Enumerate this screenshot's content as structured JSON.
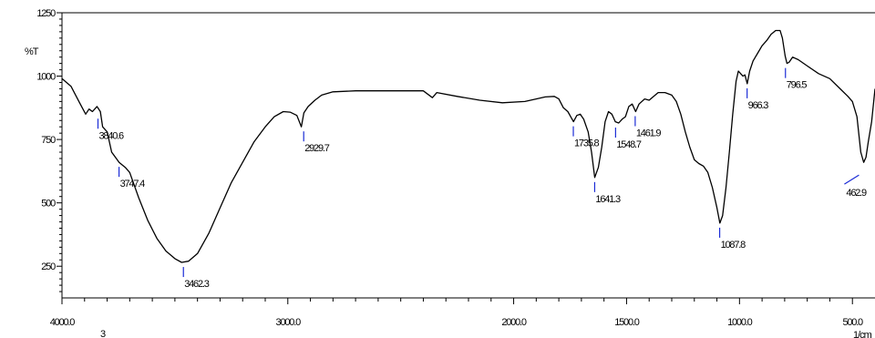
{
  "chart_data": {
    "type": "line",
    "title": "",
    "xlabel": "1/cm",
    "ylabel": "%T",
    "x_reversed": true,
    "xlim": [
      4000,
      400
    ],
    "ylim": [
      125,
      1250
    ],
    "x_ticks": [
      {
        "value": 4000,
        "label": "4000.0"
      },
      {
        "value": 3000,
        "label": "3000.0"
      },
      {
        "value": 2000,
        "label": "2000.0"
      },
      {
        "value": 1500,
        "label": "1500.0"
      },
      {
        "value": 1000,
        "label": "1000.0"
      },
      {
        "value": 500,
        "label": "500.0"
      }
    ],
    "y_ticks": [
      {
        "value": 1250,
        "label": "1250"
      },
      {
        "value": 1000,
        "label": "1000"
      },
      {
        "value": 750,
        "label": "750"
      },
      {
        "value": 500,
        "label": "500"
      },
      {
        "value": 250,
        "label": "250"
      }
    ],
    "below_axis_note": "3",
    "grid": false,
    "colors": {
      "line": "#000000",
      "marker": "#1a2bd6"
    },
    "series": [
      {
        "points": [
          [
            4000,
            990
          ],
          [
            3960,
            960
          ],
          [
            3925,
            900
          ],
          [
            3895,
            850
          ],
          [
            3880,
            870
          ],
          [
            3865,
            860
          ],
          [
            3845,
            880
          ],
          [
            3830,
            860
          ],
          [
            3820,
            800
          ],
          [
            3800,
            780
          ],
          [
            3780,
            700
          ],
          [
            3747,
            660
          ],
          [
            3720,
            640
          ],
          [
            3700,
            620
          ],
          [
            3660,
            520
          ],
          [
            3620,
            430
          ],
          [
            3580,
            360
          ],
          [
            3540,
            310
          ],
          [
            3500,
            280
          ],
          [
            3470,
            265
          ],
          [
            3440,
            270
          ],
          [
            3400,
            300
          ],
          [
            3350,
            380
          ],
          [
            3300,
            480
          ],
          [
            3250,
            580
          ],
          [
            3200,
            660
          ],
          [
            3150,
            740
          ],
          [
            3100,
            800
          ],
          [
            3060,
            840
          ],
          [
            3020,
            860
          ],
          [
            2990,
            858
          ],
          [
            2960,
            845
          ],
          [
            2940,
            800
          ],
          [
            2929,
            855
          ],
          [
            2910,
            880
          ],
          [
            2880,
            905
          ],
          [
            2850,
            925
          ],
          [
            2800,
            938
          ],
          [
            2700,
            942
          ],
          [
            2600,
            942
          ],
          [
            2400,
            942
          ],
          [
            2360,
            915
          ],
          [
            2340,
            935
          ],
          [
            2250,
            920
          ],
          [
            2150,
            905
          ],
          [
            2050,
            895
          ],
          [
            1950,
            900
          ],
          [
            1900,
            910
          ],
          [
            1860,
            918
          ],
          [
            1820,
            920
          ],
          [
            1800,
            910
          ],
          [
            1780,
            875
          ],
          [
            1760,
            860
          ],
          [
            1735,
            820
          ],
          [
            1720,
            845
          ],
          [
            1705,
            850
          ],
          [
            1690,
            830
          ],
          [
            1670,
            780
          ],
          [
            1655,
            700
          ],
          [
            1641,
            600
          ],
          [
            1625,
            640
          ],
          [
            1610,
            720
          ],
          [
            1595,
            820
          ],
          [
            1580,
            860
          ],
          [
            1565,
            850
          ],
          [
            1550,
            820
          ],
          [
            1535,
            815
          ],
          [
            1520,
            830
          ],
          [
            1505,
            840
          ],
          [
            1490,
            880
          ],
          [
            1475,
            890
          ],
          [
            1460,
            860
          ],
          [
            1445,
            890
          ],
          [
            1420,
            910
          ],
          [
            1400,
            905
          ],
          [
            1380,
            920
          ],
          [
            1360,
            935
          ],
          [
            1330,
            935
          ],
          [
            1300,
            925
          ],
          [
            1280,
            900
          ],
          [
            1260,
            850
          ],
          [
            1240,
            780
          ],
          [
            1220,
            720
          ],
          [
            1200,
            670
          ],
          [
            1180,
            655
          ],
          [
            1160,
            645
          ],
          [
            1140,
            620
          ],
          [
            1120,
            560
          ],
          [
            1100,
            480
          ],
          [
            1087,
            420
          ],
          [
            1075,
            450
          ],
          [
            1060,
            560
          ],
          [
            1045,
            700
          ],
          [
            1030,
            850
          ],
          [
            1015,
            980
          ],
          [
            1005,
            1020
          ],
          [
            995,
            1010
          ],
          [
            985,
            1000
          ],
          [
            976,
            1005
          ],
          [
            966,
            970
          ],
          [
            955,
            1020
          ],
          [
            940,
            1060
          ],
          [
            920,
            1090
          ],
          [
            900,
            1120
          ],
          [
            880,
            1140
          ],
          [
            860,
            1165
          ],
          [
            840,
            1180
          ],
          [
            820,
            1180
          ],
          [
            810,
            1150
          ],
          [
            798,
            1080
          ],
          [
            790,
            1050
          ],
          [
            780,
            1055
          ],
          [
            765,
            1075
          ],
          [
            740,
            1065
          ],
          [
            700,
            1040
          ],
          [
            650,
            1010
          ],
          [
            600,
            990
          ],
          [
            560,
            955
          ],
          [
            520,
            920
          ],
          [
            500,
            900
          ],
          [
            480,
            840
          ],
          [
            463,
            700
          ],
          [
            450,
            660
          ],
          [
            440,
            680
          ],
          [
            430,
            740
          ],
          [
            415,
            820
          ],
          [
            400,
            950
          ]
        ]
      }
    ],
    "peaks": [
      {
        "x": 3840.6,
        "y": 850,
        "label": "3840.6"
      },
      {
        "x": 3747.4,
        "y": 660,
        "label": "3747.4"
      },
      {
        "x": 3462.3,
        "y": 265,
        "label": "3462.3"
      },
      {
        "x": 2929.7,
        "y": 800,
        "label": "2929.7"
      },
      {
        "x": 1735.8,
        "y": 820,
        "label": "1735.8"
      },
      {
        "x": 1641.3,
        "y": 600,
        "label": "1641.3"
      },
      {
        "x": 1548.7,
        "y": 815,
        "label": "1548.7"
      },
      {
        "x": 1461.9,
        "y": 860,
        "label": "1461.9"
      },
      {
        "x": 1087.8,
        "y": 420,
        "label": "1087.8"
      },
      {
        "x": 966.3,
        "y": 970,
        "label": "966.3"
      },
      {
        "x": 796.5,
        "y": 1050,
        "label": "796.5"
      },
      {
        "x": 462.9,
        "y": 660,
        "label": "462.9"
      }
    ]
  }
}
